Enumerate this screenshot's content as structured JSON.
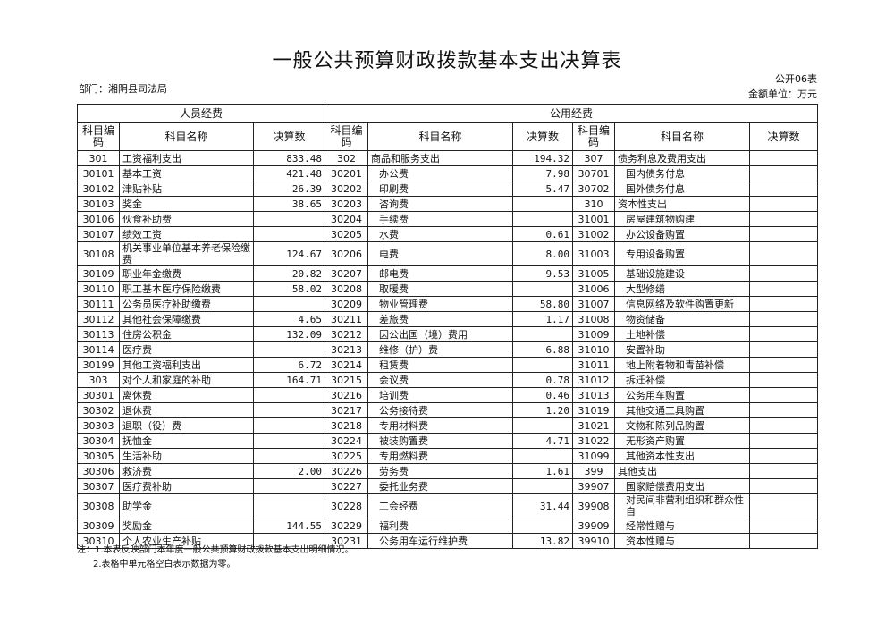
{
  "header": {
    "title": "一般公共预算财政拨款基本支出决算表",
    "form_no": "公开06表",
    "department": "部门：湘阴县司法局",
    "unit": "金额单位：万元"
  },
  "table": {
    "groups": [
      "人员经费",
      "公用经费"
    ],
    "columns": [
      "科目编码",
      "科目名称",
      "决算数",
      "科目编码",
      "科目名称",
      "决算数",
      "科目编码",
      "科目名称",
      "决算数"
    ],
    "rows": [
      [
        "301",
        "工资福利支出",
        "833.48",
        "302",
        "商品和服务支出",
        "194.32",
        "307",
        "债务利息及费用支出",
        null
      ],
      [
        "30101",
        "基本工资",
        "421.48",
        "30201",
        "办公费",
        "7.98",
        "30701",
        "国内债务付息",
        null
      ],
      [
        "30102",
        "津贴补贴",
        "26.39",
        "30202",
        "印刷费",
        "5.47",
        "30702",
        "国外债务付息",
        null
      ],
      [
        "30103",
        "奖金",
        "38.65",
        "30203",
        "咨询费",
        null,
        "310",
        "资本性支出",
        null
      ],
      [
        "30106",
        "伙食补助费",
        null,
        "30204",
        "手续费",
        null,
        "31001",
        "房屋建筑物购建",
        null
      ],
      [
        "30107",
        "绩效工资",
        null,
        "30205",
        "水费",
        "0.61",
        "31002",
        "办公设备购置",
        null
      ],
      [
        "30108",
        "机关事业单位基本养老保险缴费",
        "124.67",
        "30206",
        "电费",
        "8.00",
        "31003",
        "专用设备购置",
        null
      ],
      [
        "30109",
        "职业年金缴费",
        "20.82",
        "30207",
        "邮电费",
        "9.53",
        "31005",
        "基础设施建设",
        null
      ],
      [
        "30110",
        "职工基本医疗保险缴费",
        "58.02",
        "30208",
        "取暖费",
        null,
        "31006",
        "大型修缮",
        null
      ],
      [
        "30111",
        "公务员医疗补助缴费",
        null,
        "30209",
        "物业管理费",
        "58.80",
        "31007",
        "信息网络及软件购置更新",
        null
      ],
      [
        "30112",
        "其他社会保障缴费",
        "4.65",
        "30211",
        "差旅费",
        "1.17",
        "31008",
        "物资储备",
        null
      ],
      [
        "30113",
        "住房公积金",
        "132.09",
        "30212",
        "因公出国（境）费用",
        null,
        "31009",
        "土地补偿",
        null
      ],
      [
        "30114",
        "医疗费",
        null,
        "30213",
        "维修（护）费",
        "6.88",
        "31010",
        "安置补助",
        null
      ],
      [
        "30199",
        "其他工资福利支出",
        "6.72",
        "30214",
        "租赁费",
        null,
        "31011",
        "地上附着物和青苗补偿",
        null
      ],
      [
        "303",
        "对个人和家庭的补助",
        "164.71",
        "30215",
        "会议费",
        "0.78",
        "31012",
        "拆迁补偿",
        null
      ],
      [
        "30301",
        "离休费",
        null,
        "30216",
        "培训费",
        "0.46",
        "31013",
        "公务用车购置",
        null
      ],
      [
        "30302",
        "退休费",
        null,
        "30217",
        "公务接待费",
        "1.20",
        "31019",
        "其他交通工具购置",
        null
      ],
      [
        "30303",
        "退职（役）费",
        null,
        "30218",
        "专用材料费",
        null,
        "31021",
        "文物和陈列品购置",
        null
      ],
      [
        "30304",
        "抚恤金",
        null,
        "30224",
        "被装购置费",
        "4.71",
        "31022",
        "无形资产购置",
        null
      ],
      [
        "30305",
        "生活补助",
        null,
        "30225",
        "专用燃料费",
        null,
        "31099",
        "其他资本性支出",
        null
      ],
      [
        "30306",
        "救济费",
        "2.00",
        "30226",
        "劳务费",
        "1.61",
        "399",
        "其他支出",
        null
      ],
      [
        "30307",
        "医疗费补助",
        null,
        "30227",
        "委托业务费",
        null,
        "39907",
        "国家赔偿费用支出",
        null
      ],
      [
        "30308",
        "助学金",
        null,
        "30228",
        "工会经费",
        "31.44",
        "39908",
        "对民间非营利组织和群众性自",
        null
      ],
      [
        "30309",
        "奖励金",
        "144.55",
        "30229",
        "福利费",
        null,
        "39909",
        "经常性赠与",
        null
      ],
      [
        "30310",
        "个人农业生产补贴",
        null,
        "30231",
        "公务用车运行维护费",
        "13.82",
        "39910",
        "资本性赠与",
        null
      ]
    ]
  },
  "notes": [
    "注：1.本表反映部门本年度一般公共预算财政拨款基本支出明细情况。",
    "2.表格中单元格空白表示数据为零。"
  ]
}
